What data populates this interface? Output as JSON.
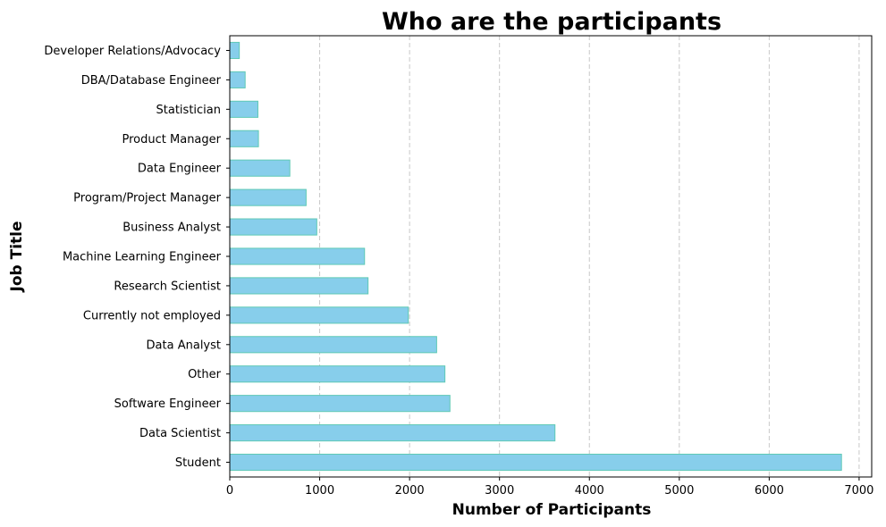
{
  "chart_data": {
    "type": "bar",
    "orientation": "horizontal",
    "title": "Who are the participants",
    "xlabel": "Number of Participants",
    "ylabel": "Job Title",
    "categories": [
      "Student",
      "Data Scientist",
      "Software Engineer",
      "Other",
      "Data Analyst",
      "Currently not employed",
      "Research Scientist",
      "Machine Learning Engineer",
      "Business Analyst",
      "Program/Project Manager",
      "Data Engineer",
      "Product Manager",
      "Statistician",
      "DBA/Database Engineer",
      "Developer Relations/Advocacy"
    ],
    "values": [
      6804,
      3617,
      2449,
      2393,
      2301,
      1986,
      1538,
      1499,
      968,
      849,
      668,
      319,
      313,
      171,
      106
    ],
    "xlim": [
      0,
      7140
    ],
    "xticks": [
      0,
      1000,
      2000,
      3000,
      4000,
      5000,
      6000,
      7000
    ],
    "xtick_labels": [
      "0",
      "1000",
      "2000",
      "3000",
      "4000",
      "5000",
      "6000",
      "7000"
    ],
    "grid": "x-axis dashed",
    "bar_color": "#87ceeb",
    "bar_edge_color": "#5fc9b5"
  }
}
